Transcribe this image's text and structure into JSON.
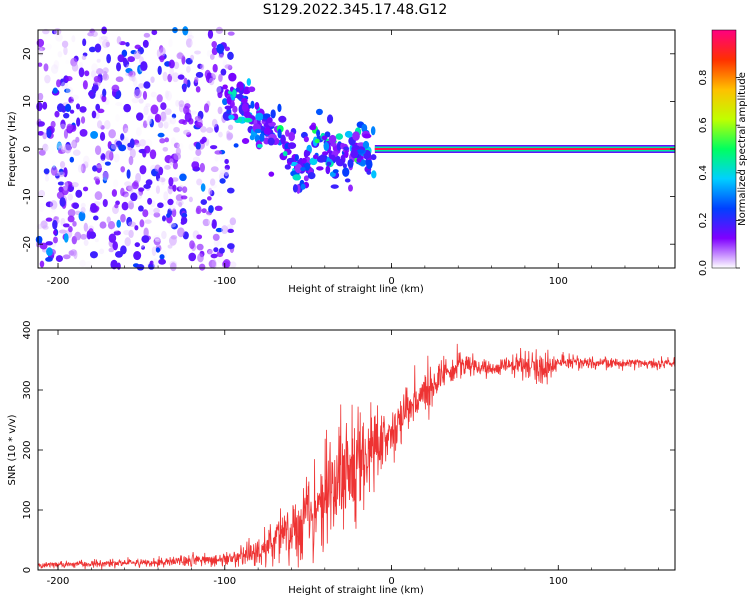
{
  "title": "S129.2022.345.17.48.G12",
  "chart_data": [
    {
      "type": "heatmap",
      "xlabel": "Height of straight line (km)",
      "ylabel": "Frequency (Hz)",
      "xlim": [
        -212,
        170
      ],
      "ylim": [
        -25,
        25
      ],
      "x_ticks": [
        -200,
        -100,
        0,
        100
      ],
      "y_ticks": [
        -20,
        -10,
        0,
        10,
        20
      ],
      "colorbar": {
        "label": "Normalized spectral amplitude",
        "range": [
          0,
          1
        ],
        "ticks": [
          "0.0",
          "0.2",
          "0.4",
          "0.6",
          "0.8"
        ],
        "tick_values": [
          0,
          0.2,
          0.4,
          0.6,
          0.8
        ],
        "colormap": [
          "#ffffff",
          "#7f00ff",
          "#0040ff",
          "#00d0ff",
          "#00ff60",
          "#c0ff00",
          "#ffc000",
          "#ff3000",
          "#ff0080"
        ]
      },
      "features": {
        "noise_region_x": [
          -212,
          -100
        ],
        "noise_amplitude": 0.15,
        "transition_region_x": [
          -100,
          -10
        ],
        "transition_amplitude": 0.3,
        "steady_line_x": [
          -10,
          170
        ],
        "steady_line_frequency": 0,
        "steady_line_amplitude": 0.95
      }
    },
    {
      "type": "line",
      "xlabel": "Height of straight line (km)",
      "ylabel": "SNR (10 * v/v)",
      "xlim": [
        -212,
        170
      ],
      "ylim": [
        0,
        400
      ],
      "x_ticks": [
        -200,
        -100,
        0,
        100
      ],
      "y_ticks": [
        0,
        100,
        200,
        300,
        400
      ],
      "series": [
        {
          "color": "#ee3333",
          "envelope_x": [
            -212,
            -150,
            -100,
            -80,
            -60,
            -50,
            -40,
            -30,
            -20,
            -10,
            0,
            10,
            20,
            30,
            40,
            50,
            60,
            70,
            80,
            90,
            100,
            120,
            140,
            170
          ],
          "envelope_y": [
            8,
            12,
            18,
            30,
            60,
            100,
            130,
            150,
            175,
            210,
            230,
            265,
            295,
            325,
            340,
            340,
            335,
            340,
            340,
            335,
            345,
            345,
            345,
            345
          ],
          "noise_std": [
            4,
            6,
            10,
            20,
            45,
            70,
            80,
            80,
            80,
            60,
            45,
            35,
            30,
            25,
            20,
            12,
            10,
            12,
            25,
            25,
            10,
            8,
            8,
            8
          ]
        }
      ]
    }
  ]
}
